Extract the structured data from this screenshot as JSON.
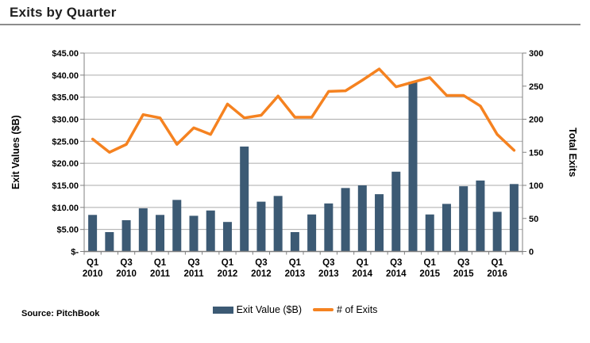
{
  "title": "Exits by Quarter",
  "source": "Source: PitchBook",
  "colors": {
    "bar": "#3c5a74",
    "line": "#f58220",
    "grid": "#ababab",
    "axis": "#808080",
    "text": "#000000"
  },
  "chart_data": {
    "type": "bar+line combo",
    "title": "Exits by Quarter",
    "categories": [
      "Q1 2010",
      "Q2 2010",
      "Q3 2010",
      "Q4 2010",
      "Q1 2011",
      "Q2 2011",
      "Q3 2011",
      "Q4 2011",
      "Q1 2012",
      "Q2 2012",
      "Q3 2012",
      "Q4 2012",
      "Q1 2013",
      "Q2 2013",
      "Q3 2013",
      "Q4 2013",
      "Q1 2014",
      "Q2 2014",
      "Q3 2014",
      "Q4 2014",
      "Q1 2015",
      "Q2 2015",
      "Q3 2015",
      "Q4 2015",
      "Q1 2016",
      "Q2 2016"
    ],
    "x_tick_labels": [
      [
        "Q1",
        "2010"
      ],
      [
        "Q3",
        "2010"
      ],
      [
        "Q1",
        "2011"
      ],
      [
        "Q3",
        "2011"
      ],
      [
        "Q1",
        "2012"
      ],
      [
        "Q3",
        "2012"
      ],
      [
        "Q1",
        "2013"
      ],
      [
        "Q3",
        "2013"
      ],
      [
        "Q1",
        "2014"
      ],
      [
        "Q3",
        "2014"
      ],
      [
        "Q1",
        "2015"
      ],
      [
        "Q3",
        "2015"
      ],
      [
        "Q1",
        "2016"
      ]
    ],
    "x_tick_every": 2,
    "series": [
      {
        "name": "Exit Value ($B)",
        "type": "bar",
        "axis": "left",
        "values": [
          8.3,
          4.4,
          7.1,
          9.8,
          8.3,
          11.7,
          8.1,
          9.3,
          6.7,
          23.8,
          11.3,
          12.6,
          4.4,
          8.4,
          10.9,
          14.4,
          15.0,
          13.0,
          18.1,
          38.5,
          8.4,
          10.8,
          14.8,
          16.1,
          9.0,
          15.3
        ]
      },
      {
        "name": "# of Exits",
        "type": "line",
        "axis": "right",
        "values": [
          170,
          150,
          162,
          207,
          202,
          162,
          187,
          177,
          223,
          202,
          206,
          235,
          203,
          203,
          242,
          243,
          259,
          276,
          249,
          256,
          263,
          236,
          236,
          220,
          177,
          153
        ]
      }
    ],
    "left_axis": {
      "title": "Exit Values ($B)",
      "min": 0,
      "max": 45,
      "step": 5,
      "tick_labels": [
        "$-",
        "$5.00",
        "$10.00",
        "$15.00",
        "$20.00",
        "$25.00",
        "$30.00",
        "$35.00",
        "$40.00",
        "$45.00"
      ]
    },
    "right_axis": {
      "title": "Total Exits",
      "min": 0,
      "max": 300,
      "step": 50,
      "tick_labels": [
        "0",
        "50",
        "100",
        "150",
        "200",
        "250",
        "300"
      ]
    },
    "grid": true,
    "legend_position": "bottom"
  }
}
